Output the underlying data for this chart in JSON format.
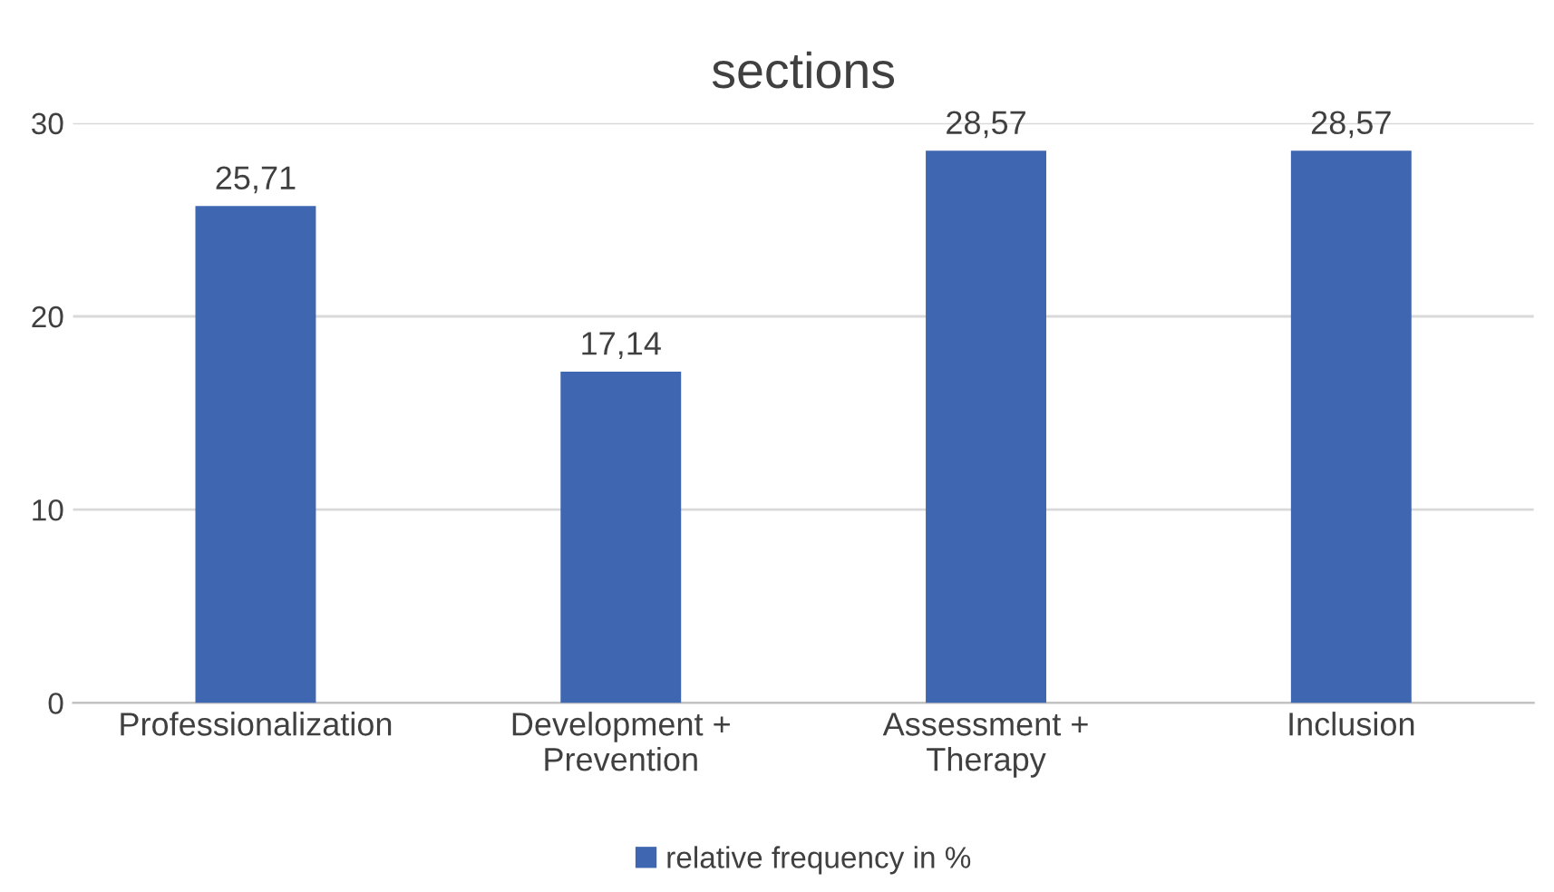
{
  "chart_data": {
    "type": "bar",
    "title": "sections",
    "categories": [
      "Professionalization",
      "Development +\nPrevention",
      "Assessment +\nTherapy",
      "Inclusion"
    ],
    "series": [
      {
        "name": "relative frequency in %",
        "color": "#3f67b1",
        "values": [
          25.71,
          17.14,
          28.57,
          28.57
        ],
        "value_labels": [
          "25,71",
          "17,14",
          "28,57",
          "28,57"
        ]
      }
    ],
    "ylim": [
      0,
      30
    ],
    "yticks": [
      0,
      10,
      20,
      30
    ],
    "grid": "y",
    "legend": "bottom"
  }
}
